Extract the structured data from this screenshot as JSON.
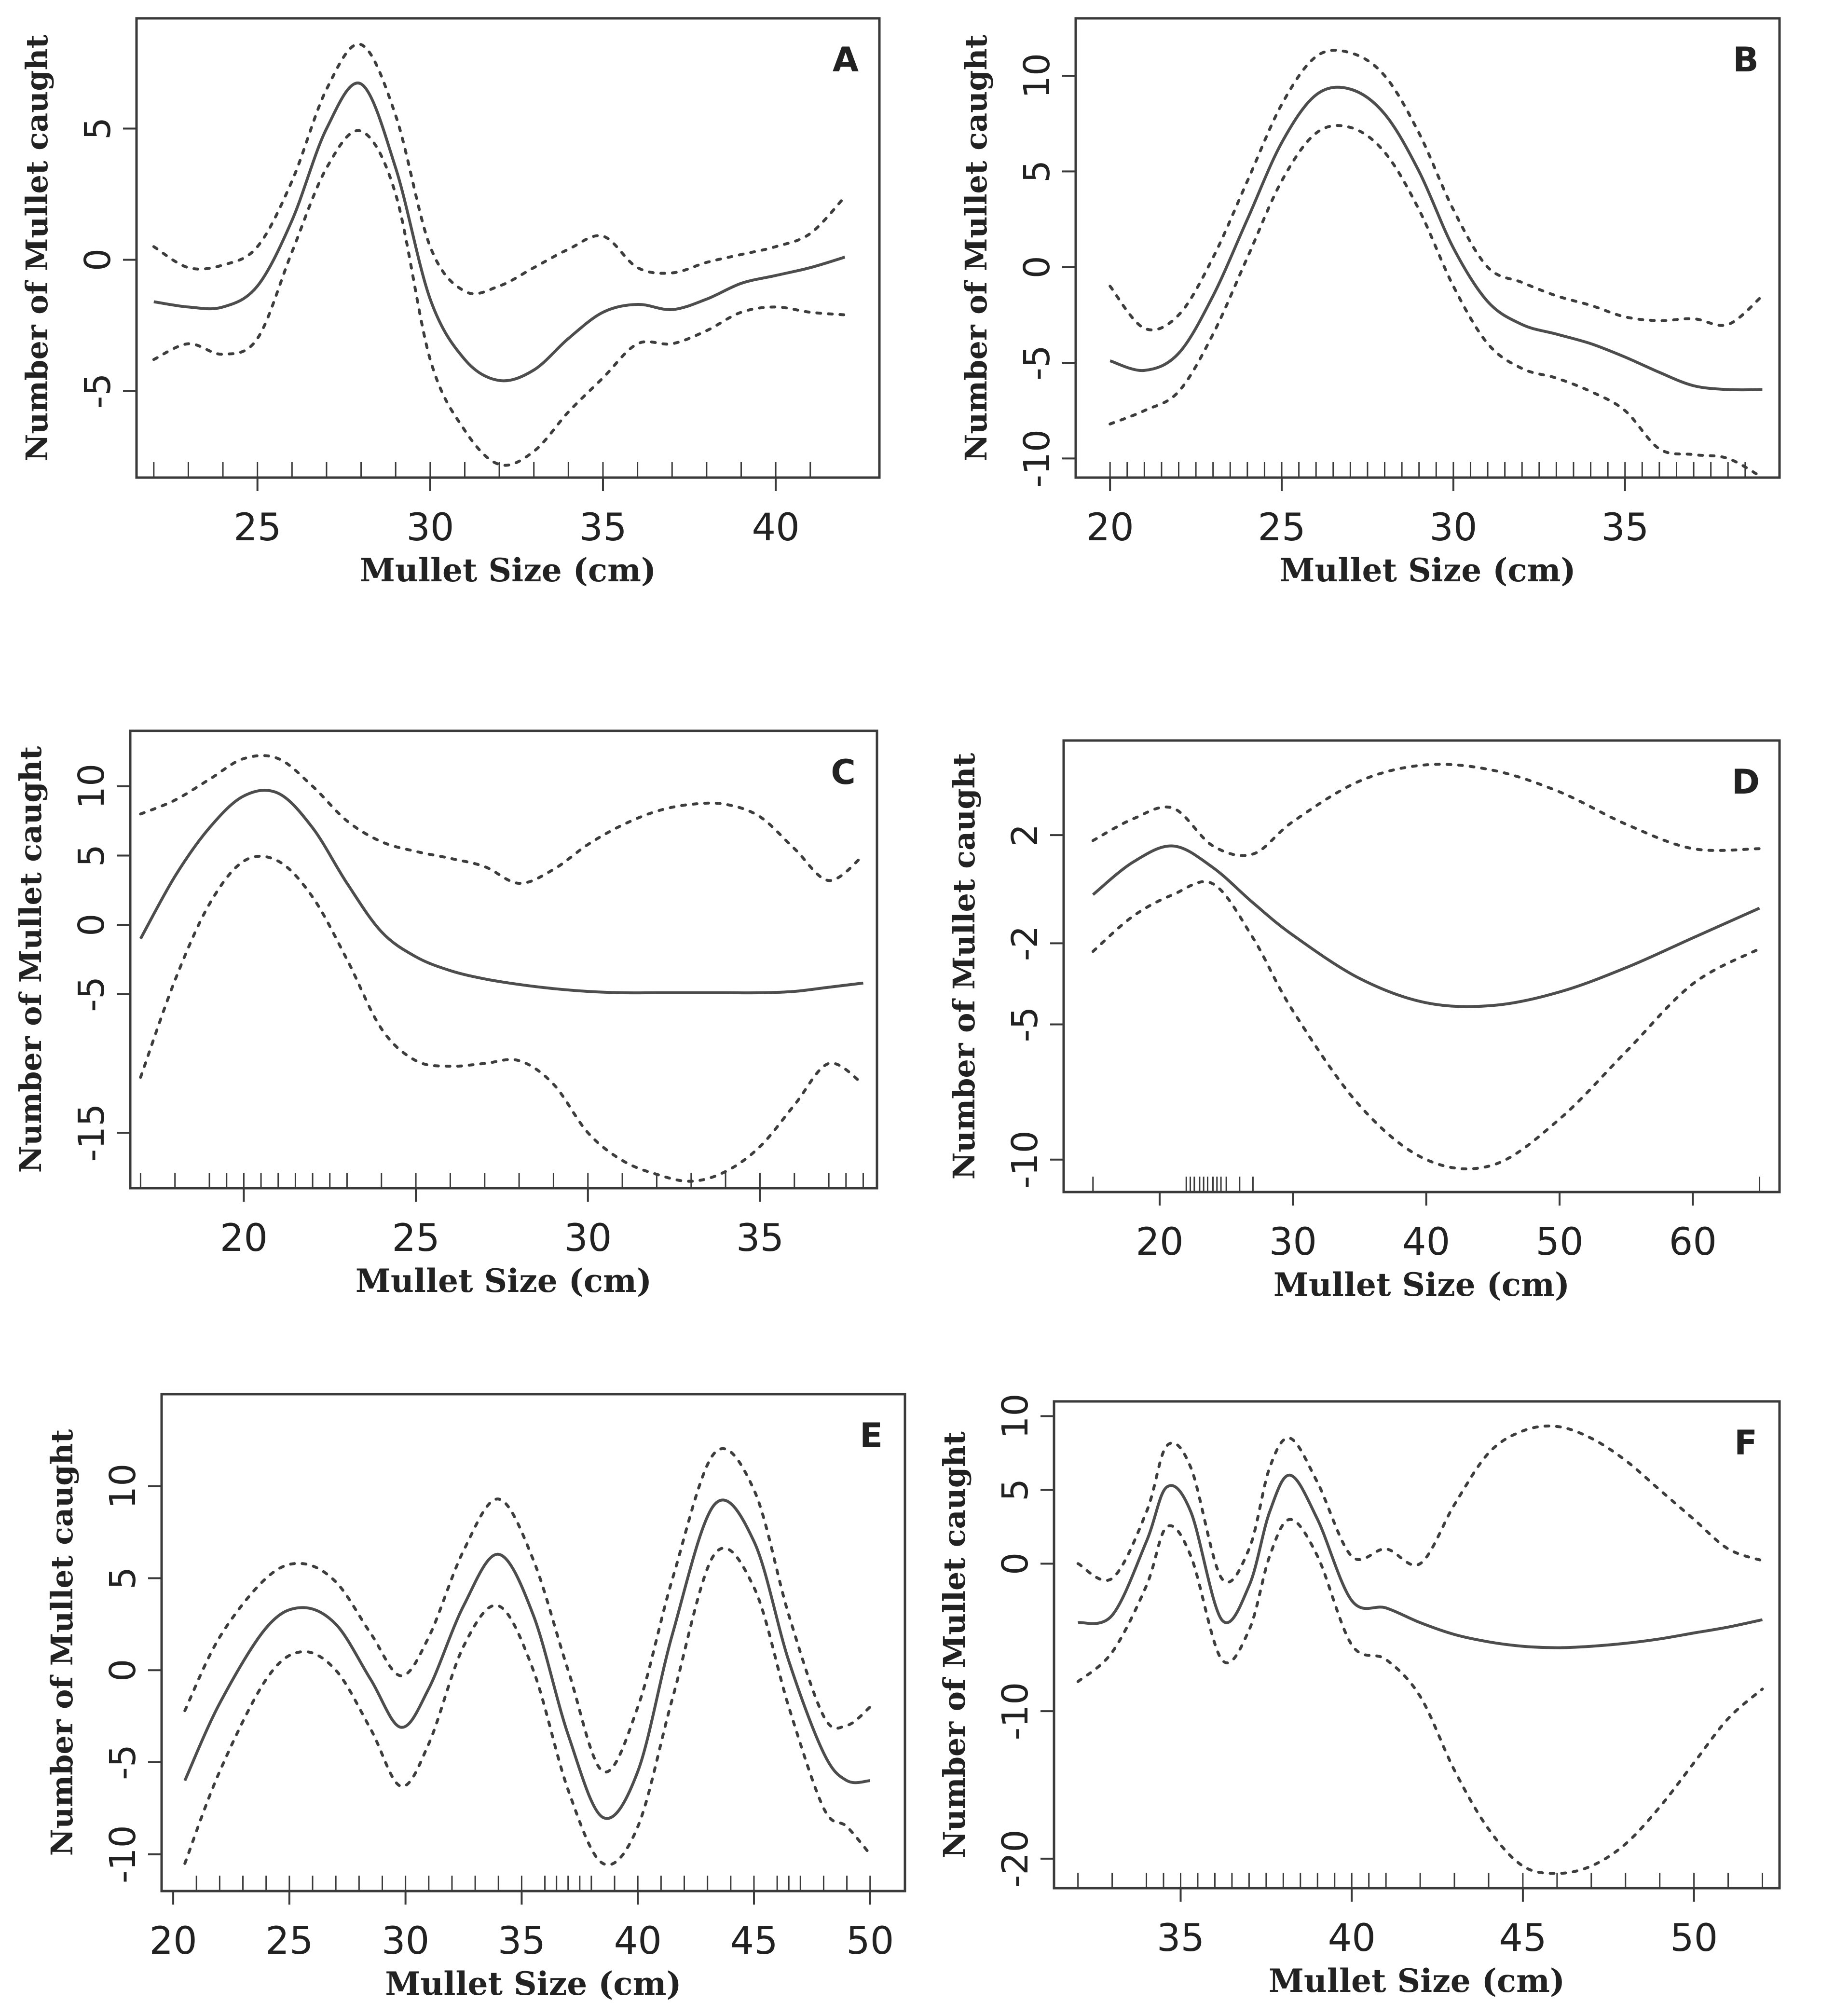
{
  "figure": {
    "description_panels": [
      "A",
      "B",
      "C",
      "D",
      "E",
      "F"
    ]
  },
  "chart_data": [
    {
      "panel": "A",
      "type": "line",
      "xlabel": "Mullet Size (cm)",
      "ylabel": "Number of Mullet caught",
      "xlim": [
        21.5,
        43
      ],
      "ylim": [
        -8.3,
        9.2
      ],
      "xticks": [
        25,
        30,
        35,
        40
      ],
      "yticks": [
        5,
        0,
        -5
      ],
      "rug": [
        22,
        23,
        24,
        25,
        26,
        27,
        28,
        29,
        30,
        31,
        32,
        33,
        34,
        35,
        36,
        37,
        38,
        39,
        40,
        41
      ],
      "series": [
        {
          "name": "fit",
          "style": "solid",
          "x": [
            22,
            23,
            24,
            25,
            26,
            27,
            28,
            29,
            30,
            31,
            32,
            33,
            34,
            35,
            36,
            37,
            38,
            39,
            40,
            41,
            42
          ],
          "y": [
            -1.6,
            -1.8,
            -1.8,
            -1.0,
            1.5,
            5.0,
            6.7,
            3.5,
            -1.5,
            -3.8,
            -4.6,
            -4.2,
            -3.0,
            -2.0,
            -1.7,
            -1.9,
            -1.5,
            -0.9,
            -0.6,
            -0.3,
            0.1
          ]
        },
        {
          "name": "upper",
          "style": "dotted",
          "x": [
            22,
            23,
            24,
            25,
            26,
            27,
            28,
            29,
            30,
            31,
            32,
            33,
            34,
            35,
            36,
            37,
            38,
            39,
            40,
            41,
            42
          ],
          "y": [
            0.5,
            -0.3,
            -0.2,
            0.5,
            3.0,
            6.5,
            8.2,
            5.5,
            0.5,
            -1.2,
            -1.0,
            -0.3,
            0.4,
            0.9,
            -0.3,
            -0.5,
            -0.1,
            0.2,
            0.5,
            1.0,
            2.4
          ]
        },
        {
          "name": "lower",
          "style": "dotted",
          "x": [
            22,
            23,
            24,
            25,
            26,
            27,
            28,
            29,
            30,
            31,
            32,
            33,
            34,
            35,
            36,
            37,
            38,
            39,
            40,
            41,
            42
          ],
          "y": [
            -3.8,
            -3.2,
            -3.6,
            -3.0,
            0.3,
            3.5,
            4.9,
            2.5,
            -3.8,
            -6.5,
            -7.8,
            -7.3,
            -5.8,
            -4.5,
            -3.2,
            -3.2,
            -2.7,
            -2.0,
            -1.8,
            -2.0,
            -2.1
          ]
        }
      ]
    },
    {
      "panel": "B",
      "type": "line",
      "xlabel": "Mullet Size (cm)",
      "ylabel": "Number of Mullet caught",
      "xlim": [
        19,
        39.5
      ],
      "ylim": [
        -11,
        13
      ],
      "xticks": [
        20,
        25,
        30,
        35
      ],
      "yticks": [
        10,
        5,
        0,
        -5,
        -10
      ],
      "rug": [
        20,
        20.5,
        21,
        21.5,
        22,
        22.5,
        23,
        23.5,
        24,
        24.5,
        25,
        25.5,
        26,
        26.5,
        27,
        27.5,
        28,
        28.5,
        29,
        29.5,
        30,
        30.5,
        31,
        31.5,
        32,
        32.5,
        33,
        33.5,
        34,
        34.5,
        35,
        35.5,
        36,
        36.5,
        37,
        37.5,
        38,
        38.5
      ],
      "series": [
        {
          "name": "fit",
          "style": "solid",
          "x": [
            20,
            21,
            22,
            23,
            24,
            25,
            26,
            27,
            28,
            29,
            30,
            31,
            32,
            33,
            34,
            35,
            36,
            37,
            38,
            39
          ],
          "y": [
            -4.9,
            -5.4,
            -4.5,
            -1.5,
            2.5,
            6.5,
            9.0,
            9.3,
            8.0,
            5.0,
            1.0,
            -1.8,
            -3.0,
            -3.5,
            -4.0,
            -4.7,
            -5.5,
            -6.2,
            -6.4,
            -6.4
          ]
        },
        {
          "name": "upper",
          "style": "dotted",
          "x": [
            20,
            21,
            22,
            23,
            24,
            25,
            26,
            27,
            28,
            29,
            30,
            31,
            32,
            33,
            34,
            35,
            36,
            37,
            38,
            39
          ],
          "y": [
            -1.0,
            -3.2,
            -2.5,
            0.5,
            4.5,
            8.5,
            11.0,
            11.2,
            10.0,
            7.0,
            3.0,
            0.0,
            -0.8,
            -1.5,
            -2.0,
            -2.6,
            -2.8,
            -2.7,
            -3.0,
            -1.5
          ]
        },
        {
          "name": "lower",
          "style": "dotted",
          "x": [
            20,
            21,
            22,
            23,
            24,
            25,
            26,
            27,
            28,
            29,
            30,
            31,
            32,
            33,
            34,
            35,
            36,
            37,
            38,
            39
          ],
          "y": [
            -8.2,
            -7.5,
            -6.5,
            -3.5,
            0.5,
            4.5,
            7.0,
            7.3,
            6.0,
            3.0,
            -1.0,
            -4.0,
            -5.3,
            -5.8,
            -6.5,
            -7.5,
            -9.5,
            -9.8,
            -10.0,
            -11.0
          ]
        }
      ]
    },
    {
      "panel": "C",
      "type": "line",
      "xlabel": "Mullet Size (cm)",
      "ylabel": "Number of Mullet caught",
      "xlim": [
        16.7,
        38.4
      ],
      "ylim": [
        -19,
        14
      ],
      "xticks": [
        20,
        25,
        30,
        35
      ],
      "yticks": [
        10,
        5,
        0,
        -5,
        -15
      ],
      "rug": [
        17,
        18,
        19,
        19.5,
        20,
        20.5,
        21,
        21.5,
        22,
        22.5,
        23,
        24,
        25,
        26,
        27,
        28,
        29,
        30,
        31,
        32,
        33,
        34,
        35,
        36,
        37,
        37.5,
        38
      ],
      "series": [
        {
          "name": "fit",
          "style": "solid",
          "x": [
            17,
            18,
            19,
            20,
            21,
            22,
            23,
            24,
            25,
            26,
            27,
            28,
            29,
            30,
            31,
            32,
            33,
            34,
            35,
            36,
            37,
            38
          ],
          "y": [
            -1,
            3.5,
            7,
            9.3,
            9.5,
            7,
            3,
            -0.5,
            -2.3,
            -3.3,
            -3.9,
            -4.3,
            -4.6,
            -4.8,
            -4.9,
            -4.9,
            -4.9,
            -4.9,
            -4.9,
            -4.8,
            -4.5,
            -4.2
          ]
        },
        {
          "name": "upper",
          "style": "dotted",
          "x": [
            17,
            18,
            19,
            20,
            21,
            22,
            23,
            24,
            25,
            26,
            27,
            28,
            29,
            30,
            31,
            32,
            33,
            34,
            35,
            36,
            37,
            38
          ],
          "y": [
            8,
            9,
            10.5,
            12,
            12,
            10,
            7.5,
            6,
            5.3,
            4.8,
            4.2,
            3,
            4,
            5.8,
            7.2,
            8.2,
            8.7,
            8.7,
            7.8,
            5.5,
            3.2,
            5
          ]
        },
        {
          "name": "lower",
          "style": "dotted",
          "x": [
            17,
            18,
            19,
            20,
            21,
            22,
            23,
            24,
            25,
            26,
            27,
            28,
            29,
            30,
            31,
            32,
            33,
            34,
            35,
            36,
            37,
            38
          ],
          "y": [
            -11,
            -4,
            1.5,
            4.6,
            4.6,
            2,
            -2.5,
            -7.5,
            -9.8,
            -10.2,
            -10,
            -9.8,
            -11.5,
            -15,
            -17,
            -18,
            -18.5,
            -17.8,
            -16,
            -13,
            -10,
            -11.5
          ]
        }
      ]
    },
    {
      "panel": "D",
      "type": "line",
      "xlabel": "Mullet Size (cm)",
      "ylabel": "Number of Mullet caught",
      "xlim": [
        12.8,
        66.5
      ],
      "ylim": [
        -11.2,
        5.5
      ],
      "xticks": [
        20,
        30,
        40,
        50,
        60
      ],
      "yticks": [
        2,
        -2,
        -5,
        -10
      ],
      "rug": [
        15,
        22,
        22.3,
        22.6,
        23,
        23.3,
        23.6,
        24,
        24.3,
        24.6,
        25,
        26,
        27,
        65
      ],
      "series": [
        {
          "name": "fit",
          "style": "solid",
          "x": [
            15,
            18,
            21,
            24,
            27,
            30,
            35,
            40,
            45,
            50,
            55,
            60,
            65
          ],
          "y": [
            -0.2,
            1.0,
            1.6,
            0.8,
            -0.5,
            -1.7,
            -3.3,
            -4.2,
            -4.3,
            -3.8,
            -2.9,
            -1.8,
            -0.7
          ]
        },
        {
          "name": "upper",
          "style": "dotted",
          "x": [
            15,
            18,
            21,
            24,
            27,
            30,
            35,
            40,
            45,
            50,
            55,
            60,
            65
          ],
          "y": [
            1.8,
            2.6,
            3.0,
            1.6,
            1.3,
            2.5,
            4.0,
            4.6,
            4.4,
            3.6,
            2.4,
            1.5,
            1.5
          ]
        },
        {
          "name": "lower",
          "style": "dotted",
          "x": [
            15,
            18,
            21,
            24,
            27,
            30,
            35,
            40,
            45,
            50,
            55,
            60,
            65
          ],
          "y": [
            -2.3,
            -1.0,
            -0.2,
            0.2,
            -1.8,
            -4.5,
            -8.0,
            -10.0,
            -10.2,
            -8.5,
            -6.0,
            -3.5,
            -2.2
          ]
        }
      ]
    },
    {
      "panel": "E",
      "type": "line",
      "xlabel": "Mullet Size (cm)",
      "ylabel": "Number of Mullet caught",
      "xlim": [
        19.5,
        51.5
      ],
      "ylim": [
        -12,
        15
      ],
      "xticks": [
        20,
        25,
        30,
        35,
        40,
        45,
        50
      ],
      "yticks": [
        10,
        5,
        0,
        -5,
        -10
      ],
      "rug": [
        21,
        22,
        23,
        24,
        25,
        26,
        27,
        28,
        29,
        30,
        31,
        32,
        33,
        34,
        35,
        36,
        36.5,
        37,
        37.5,
        38,
        39,
        40,
        41,
        42,
        43,
        44,
        45,
        46,
        46.5,
        47,
        48,
        49,
        50
      ],
      "series": [
        {
          "name": "fit",
          "style": "solid",
          "x": [
            20.5,
            22,
            24,
            25.5,
            27,
            28.5,
            29.8,
            31,
            32.5,
            34,
            35.5,
            37,
            38.5,
            40,
            41.5,
            43.3,
            45,
            46.5,
            48,
            49,
            50
          ],
          "y": [
            -6,
            -1.8,
            2.3,
            3.4,
            2.5,
            -0.5,
            -3.1,
            -1,
            3.5,
            6.3,
            3,
            -3.5,
            -8,
            -5.5,
            2,
            9,
            7,
            0.5,
            -4.5,
            -6,
            -6
          ]
        },
        {
          "name": "upper",
          "style": "dotted",
          "x": [
            20.5,
            22,
            24,
            25.5,
            27,
            28.5,
            29.8,
            31,
            32.5,
            34,
            35.5,
            37,
            38.5,
            40,
            41.5,
            43.3,
            45,
            46.5,
            48,
            49,
            50
          ],
          "y": [
            -2.2,
            1.8,
            5,
            5.8,
            4.8,
            2,
            -0.3,
            1.8,
            6.5,
            9.3,
            6,
            0,
            -5.5,
            -2,
            5,
            11.8,
            9.8,
            3,
            -2.5,
            -3,
            -2
          ]
        },
        {
          "name": "lower",
          "style": "dotted",
          "x": [
            20.5,
            22,
            24,
            25.5,
            27,
            28.5,
            29.8,
            31,
            32.5,
            34,
            35.5,
            37,
            38.5,
            40,
            41.5,
            43.3,
            45,
            46.5,
            48,
            49,
            50
          ],
          "y": [
            -10.5,
            -5.5,
            -0.5,
            1,
            0,
            -3.2,
            -6.3,
            -4,
            1.3,
            3.5,
            0,
            -6.5,
            -10.5,
            -8.5,
            -1.5,
            6.3,
            4.5,
            -2,
            -7.5,
            -8.5,
            -10
          ]
        }
      ]
    },
    {
      "panel": "F",
      "type": "line",
      "xlabel": "Mullet Size (cm)",
      "ylabel": "Number of Mullet caught",
      "xlim": [
        31.3,
        52.5
      ],
      "ylim": [
        -22,
        11
      ],
      "xticks": [
        35,
        40,
        45,
        50
      ],
      "yticks": [
        10,
        5,
        0,
        -10,
        -20
      ],
      "rug": [
        32,
        33,
        34,
        34.5,
        35,
        35.5,
        36,
        36.5,
        37,
        37.5,
        38,
        38.5,
        39,
        39.5,
        40,
        40.5,
        41,
        42,
        43,
        44,
        45,
        46,
        47,
        48,
        49,
        50,
        51,
        52
      ],
      "series": [
        {
          "name": "fit",
          "style": "solid",
          "x": [
            32,
            33,
            34,
            34.6,
            35.3,
            36.2,
            37,
            37.6,
            38.2,
            39,
            40,
            41,
            42,
            43,
            44,
            45,
            46,
            47,
            48,
            49,
            50,
            51,
            52
          ],
          "y": [
            -4,
            -3.5,
            1.5,
            5.2,
            3.5,
            -3.8,
            -1.5,
            3.5,
            6,
            3,
            -2.5,
            -3,
            -4,
            -4.8,
            -5.3,
            -5.6,
            -5.7,
            -5.6,
            -5.4,
            -5.1,
            -4.7,
            -4.3,
            -3.8
          ]
        },
        {
          "name": "upper",
          "style": "dotted",
          "x": [
            32,
            33,
            34,
            34.6,
            35.3,
            36.2,
            37,
            37.6,
            38.2,
            39,
            40,
            41,
            42,
            43,
            44,
            45,
            46,
            47,
            48,
            49,
            50,
            51,
            52
          ],
          "y": [
            0,
            -1,
            3.5,
            8,
            6.5,
            -1,
            1,
            6.5,
            8.5,
            5.5,
            0.5,
            1,
            0,
            4,
            7.5,
            9,
            9.3,
            8.5,
            7,
            5,
            3,
            1,
            0.2
          ]
        },
        {
          "name": "lower",
          "style": "dotted",
          "x": [
            32,
            33,
            34,
            34.6,
            35.3,
            36.2,
            37,
            37.6,
            38.2,
            39,
            40,
            41,
            42,
            43,
            44,
            45,
            46,
            47,
            48,
            49,
            50,
            51,
            52
          ],
          "y": [
            -8,
            -6,
            -1.5,
            2.5,
            0.5,
            -6.5,
            -4.5,
            0.5,
            3,
            0.5,
            -5.5,
            -6.5,
            -9,
            -14,
            -18,
            -20.5,
            -21,
            -20.5,
            -19,
            -16.5,
            -13.5,
            -10.5,
            -8.5
          ]
        }
      ]
    }
  ]
}
